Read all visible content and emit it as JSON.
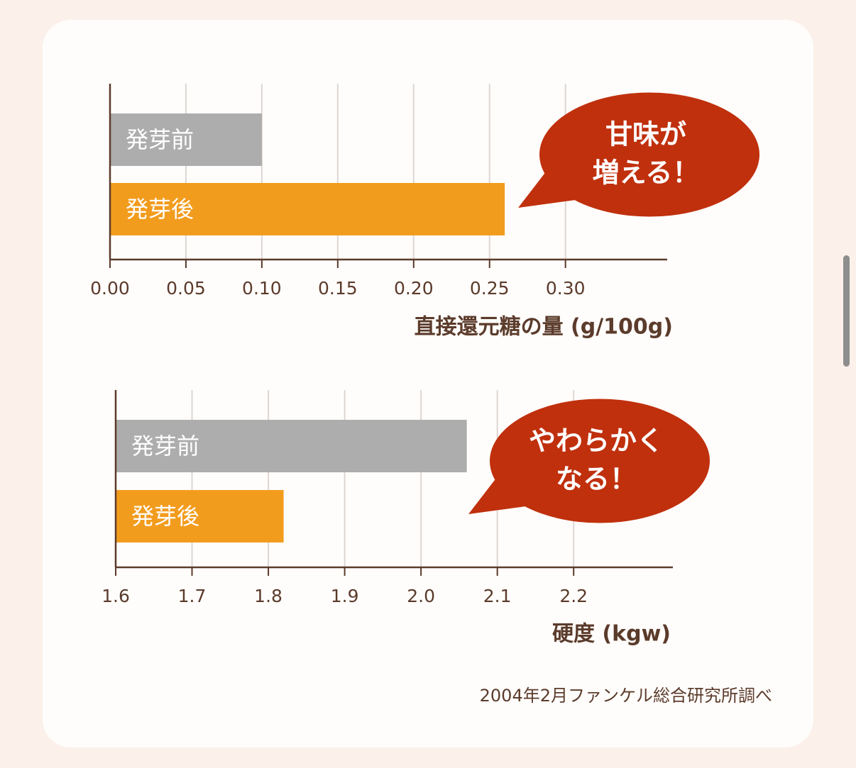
{
  "chart_data": [
    {
      "type": "bar",
      "orientation": "horizontal",
      "categories": [
        "発芽前",
        "発芽後"
      ],
      "values": [
        0.1,
        0.26
      ],
      "colors": [
        "#adadad",
        "#f29c1e"
      ],
      "xlim": [
        0,
        0.367
      ],
      "xticks": [
        {
          "value": 0,
          "label": "0.00"
        },
        {
          "value": 0.05,
          "label": "0.05"
        },
        {
          "value": 0.1,
          "label": "0.10"
        },
        {
          "value": 0.15,
          "label": "0.15"
        },
        {
          "value": 0.2,
          "label": "0.20"
        },
        {
          "value": 0.25,
          "label": "0.25"
        },
        {
          "value": 0.3,
          "label": "0.30"
        }
      ],
      "grid": true,
      "xlabel": "直接還元糖の量 (g/100g)",
      "annotation": [
        "甘味が",
        "増える！"
      ]
    },
    {
      "type": "bar",
      "orientation": "horizontal",
      "categories": [
        "発芽前",
        "発芽後"
      ],
      "values": [
        2.06,
        1.82
      ],
      "colors": [
        "#adadad",
        "#f29c1e"
      ],
      "xlim": [
        1.6,
        2.33
      ],
      "xticks": [
        1.6,
        1.7,
        1.8,
        1.9,
        {
          "value": 2,
          "label": "2.0"
        },
        2.1,
        2.2
      ],
      "grid": true,
      "xlabel": "硬度 (kgw)",
      "annotation": [
        "やわらかく",
        "なる！"
      ]
    }
  ],
  "source": "2004年2月ファンケル総合研究所調べ"
}
